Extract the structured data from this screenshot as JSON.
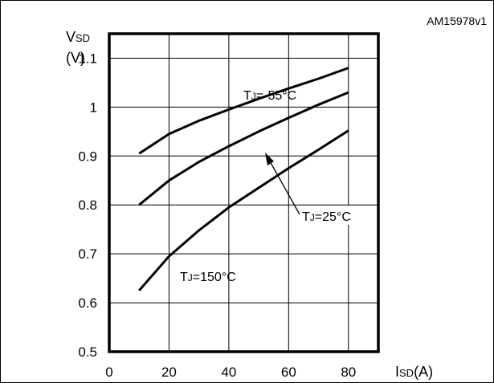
{
  "figure_code": "AM15978v1",
  "chart_data": {
    "type": "line",
    "xlabel_main": "I",
    "xlabel_sub": "SD",
    "xlabel_unit": "(A)",
    "ylabel_main": "V",
    "ylabel_sub": "SD",
    "ylabel_unit": "(V)",
    "xlim": [
      0,
      90
    ],
    "ylim": [
      0.5,
      1.15
    ],
    "xticks": [
      0,
      20,
      40,
      60,
      80
    ],
    "xtick_labels": [
      "0",
      "20",
      "40",
      "60",
      "80"
    ],
    "yticks": [
      0.5,
      0.6,
      0.7,
      0.8,
      0.9,
      1.0,
      1.1
    ],
    "ytick_labels": [
      "0.5",
      "0.6",
      "0.7",
      "0.8",
      "0.9",
      "1",
      "1.1"
    ],
    "grid": true,
    "series": [
      {
        "label_main": "T",
        "label_sub": "J",
        "label_value": "=-55°C",
        "x": [
          10,
          20,
          30,
          40,
          50,
          60,
          70,
          80
        ],
        "y": [
          0.905,
          0.945,
          0.972,
          0.995,
          1.017,
          1.038,
          1.058,
          1.08
        ]
      },
      {
        "label_main": "T",
        "label_sub": "J",
        "label_value": "=25°C",
        "x": [
          10,
          20,
          30,
          40,
          50,
          60,
          70,
          80
        ],
        "y": [
          0.8,
          0.85,
          0.888,
          0.92,
          0.95,
          0.978,
          1.005,
          1.03
        ]
      },
      {
        "label_main": "T",
        "label_sub": "J",
        "label_value": "=150°C",
        "x": [
          10,
          20,
          30,
          40,
          50,
          60,
          70,
          80
        ],
        "y": [
          0.625,
          0.695,
          0.748,
          0.795,
          0.835,
          0.875,
          0.913,
          0.952
        ]
      }
    ]
  }
}
